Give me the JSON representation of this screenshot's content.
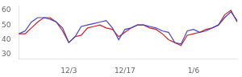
{
  "chart_data": {
    "type": "line",
    "categories": [
      null,
      null,
      null,
      null,
      null,
      null,
      null,
      null,
      "12/3",
      null,
      null,
      null,
      null,
      null,
      null,
      null,
      null,
      "12/17",
      null,
      null,
      null,
      null,
      null,
      null,
      null,
      null,
      null,
      null,
      "1/6",
      null,
      null,
      null,
      null,
      null,
      null,
      null
    ],
    "series": [
      {
        "color": "#4444cc",
        "values": [
          44,
          46,
          52,
          55,
          55,
          54,
          52,
          48,
          38,
          42,
          49,
          50,
          51,
          52,
          53,
          48,
          40,
          47,
          48,
          50,
          50,
          49,
          48,
          46,
          45,
          38,
          37,
          46,
          47,
          45,
          46,
          48,
          50,
          55,
          59,
          53
        ]
      },
      {
        "color": "#cc2222",
        "values": [
          44,
          44,
          48,
          52,
          55,
          55,
          52,
          46,
          38,
          42,
          43,
          48,
          49,
          50,
          48,
          47,
          42,
          45,
          48,
          50,
          50,
          48,
          47,
          44,
          40,
          38,
          36,
          43,
          44,
          45,
          47,
          48,
          50,
          57,
          60,
          52
        ]
      }
    ],
    "ylim": [
      27,
      63
    ],
    "yticks": [
      30,
      40,
      50,
      60
    ],
    "grid": false
  }
}
